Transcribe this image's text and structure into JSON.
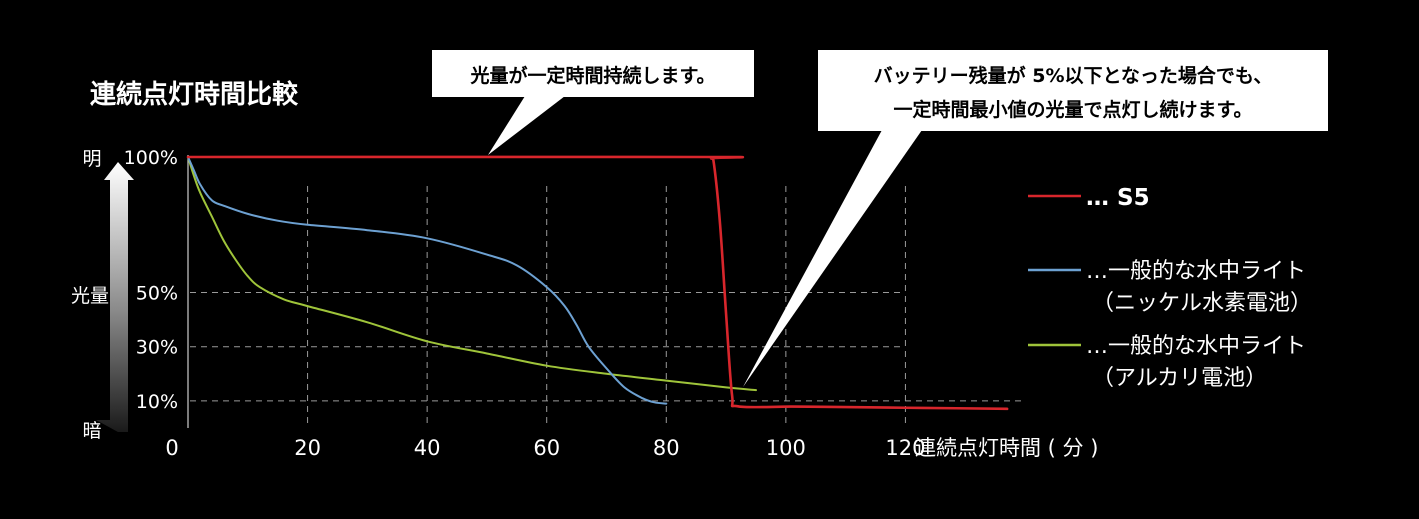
{
  "chart_data": {
    "type": "line",
    "title": "連続点灯時間比較",
    "xlabel": "連続点灯時間 ( 分 )",
    "ylabel": "光量",
    "y_top_label": "明",
    "y_bottom_label": "暗",
    "xlim": [
      0,
      140
    ],
    "ylim": [
      0,
      100
    ],
    "x_origin_label": "0",
    "x_ticks": [
      20,
      40,
      60,
      80,
      100,
      120
    ],
    "y_ticks": [
      {
        "value": 100,
        "label": "100%"
      },
      {
        "value": 50,
        "label": "50%"
      },
      {
        "value": 30,
        "label": "30%"
      },
      {
        "value": 10,
        "label": "10%"
      }
    ],
    "series": [
      {
        "name": "S5",
        "legend_label": "… S5",
        "color": "#d8262c",
        "x": [
          0,
          86,
          87.5,
          88,
          89,
          90,
          91,
          92,
          101,
          110,
          123,
          137
        ],
        "y": [
          100,
          100,
          99.5,
          97,
          75,
          42,
          12,
          8,
          7.9,
          7.7,
          7.4,
          7.1
        ]
      },
      {
        "name": "一般的な水中ライト（ニッケル水素電池）",
        "legend_label": "…一般的な水中ライト",
        "legend_sub": "（ニッケル水素電池）",
        "color": "#6da1d2",
        "x": [
          0,
          1,
          2,
          4,
          6,
          10,
          15,
          20,
          30,
          40,
          50,
          55,
          60,
          63,
          65,
          67,
          70,
          73,
          76,
          78,
          80
        ],
        "y": [
          100,
          95,
          90,
          84,
          82,
          79,
          76.5,
          75,
          73,
          70,
          64,
          60,
          52,
          45,
          38,
          30,
          22,
          15,
          11,
          9.5,
          9
        ]
      },
      {
        "name": "一般的な水中ライト（アルカリ電池）",
        "legend_label": "…一般的な水中ライト",
        "legend_sub": "（アルカリ電池）",
        "color": "#9fc43a",
        "x": [
          0,
          1,
          2,
          4,
          6,
          8,
          10,
          12,
          16,
          20,
          30,
          40,
          50,
          60,
          70,
          80,
          90,
          95
        ],
        "y": [
          100,
          93,
          87,
          78,
          69,
          62,
          56,
          52,
          47.5,
          45,
          39,
          32,
          27.5,
          23,
          20,
          17.5,
          15,
          14
        ]
      }
    ],
    "annotations": [
      {
        "text": "光量が一定時間持続します。"
      },
      {
        "lines": [
          "バッテリー残量が 5%以下となった場合でも、",
          "一定時間最小値の光量で点灯し続けます。"
        ]
      }
    ]
  }
}
